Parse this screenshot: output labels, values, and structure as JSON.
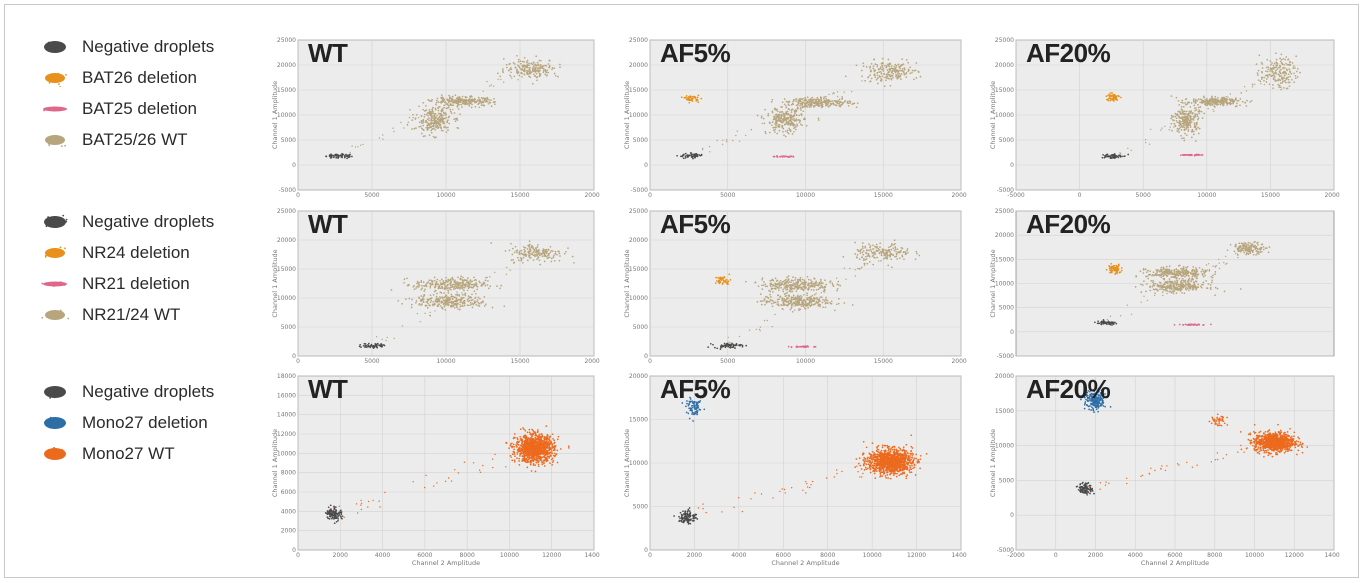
{
  "legends": [
    {
      "items": [
        {
          "label": "Negative droplets",
          "color": "#4a4a4a"
        },
        {
          "label": "BAT26 deletion",
          "color": "#e8901c"
        },
        {
          "label": "BAT25 deletion",
          "color": "#e0678c"
        },
        {
          "label": "BAT25/26 WT",
          "color": "#b7a57d"
        }
      ]
    },
    {
      "items": [
        {
          "label": "Negative droplets",
          "color": "#4a4a4a"
        },
        {
          "label": "NR24 deletion",
          "color": "#e8901c"
        },
        {
          "label": "NR21 deletion",
          "color": "#e0678c"
        },
        {
          "label": "NR21/24 WT",
          "color": "#b7a57d"
        }
      ]
    },
    {
      "items": [
        {
          "label": "Negative droplets",
          "color": "#4a4a4a"
        },
        {
          "label": "Mono27 deletion",
          "color": "#2d6ea6"
        },
        {
          "label": "Mono27 WT",
          "color": "#ec6a1e"
        }
      ]
    }
  ],
  "chart_data": [
    {
      "type": "scatter",
      "title": "WT",
      "xlabel": "",
      "ylabel": "Channel 1 Amplitude",
      "xlim": [
        0,
        20000
      ],
      "ylim": [
        -5000,
        25000
      ],
      "xticks": [
        "0",
        "5000",
        "10000",
        "15000",
        "20000"
      ],
      "yticks": [
        "-5000",
        "0",
        "5000",
        "10000",
        "15000",
        "20000",
        "25000"
      ],
      "clusters": [
        {
          "name": "Negative droplets",
          "x": 2700,
          "y": 1800,
          "sx": 400,
          "sy": 250,
          "count": 60
        },
        {
          "name": "BAT25/26 WT",
          "x": 9200,
          "y": 8900,
          "sx": 600,
          "sy": 1300,
          "count": 260
        },
        {
          "name": "BAT25/26 WT",
          "x": 11200,
          "y": 12700,
          "sx": 1000,
          "sy": 450,
          "count": 260
        },
        {
          "name": "BAT25/26 WT",
          "x": 15800,
          "y": 19300,
          "sx": 900,
          "sy": 900,
          "count": 200
        }
      ]
    },
    {
      "type": "scatter",
      "title": "AF5%",
      "xlabel": "",
      "ylabel": "Channel 1 Amplitude",
      "xlim": [
        0,
        20000
      ],
      "ylim": [
        -5000,
        25000
      ],
      "xticks": [
        "0",
        "5000",
        "10000",
        "15000",
        "20000"
      ],
      "yticks": [
        "-5000",
        "0",
        "5000",
        "10000",
        "15000",
        "20000",
        "25000"
      ],
      "clusters": [
        {
          "name": "Negative droplets",
          "x": 2700,
          "y": 1800,
          "sx": 400,
          "sy": 250,
          "count": 60
        },
        {
          "name": "BAT26 deletion",
          "x": 2700,
          "y": 13300,
          "sx": 220,
          "sy": 300,
          "count": 45
        },
        {
          "name": "BAT25 deletion",
          "x": 8600,
          "y": 1700,
          "sx": 400,
          "sy": 60,
          "count": 30
        },
        {
          "name": "BAT25/26 WT",
          "x": 8700,
          "y": 8900,
          "sx": 600,
          "sy": 1300,
          "count": 260
        },
        {
          "name": "BAT25/26 WT",
          "x": 10900,
          "y": 12500,
          "sx": 1000,
          "sy": 450,
          "count": 260
        },
        {
          "name": "BAT25/26 WT",
          "x": 15400,
          "y": 18700,
          "sx": 900,
          "sy": 1000,
          "count": 200
        }
      ]
    },
    {
      "type": "scatter",
      "title": "AF20%",
      "xlabel": "",
      "ylabel": "Channel 1 Amplitude",
      "xlim": [
        -5000,
        20000
      ],
      "ylim": [
        -5000,
        25000
      ],
      "xticks": [
        "-5000",
        "0",
        "5000",
        "10000",
        "15000",
        "20000"
      ],
      "yticks": [
        "-5000",
        "0",
        "5000",
        "10000",
        "15000",
        "20000",
        "25000"
      ],
      "clusters": [
        {
          "name": "Negative droplets",
          "x": 2500,
          "y": 1800,
          "sx": 400,
          "sy": 250,
          "count": 60
        },
        {
          "name": "BAT26 deletion",
          "x": 2600,
          "y": 13500,
          "sx": 250,
          "sy": 400,
          "count": 70
        },
        {
          "name": "BAT25 deletion",
          "x": 8800,
          "y": 2000,
          "sx": 400,
          "sy": 60,
          "count": 40
        },
        {
          "name": "BAT25/26 WT",
          "x": 8400,
          "y": 9000,
          "sx": 500,
          "sy": 1500,
          "count": 240
        },
        {
          "name": "BAT25/26 WT",
          "x": 10800,
          "y": 12700,
          "sx": 1000,
          "sy": 400,
          "count": 240
        },
        {
          "name": "BAT25/26 WT",
          "x": 15600,
          "y": 18500,
          "sx": 700,
          "sy": 1500,
          "count": 180
        }
      ]
    },
    {
      "type": "scatter",
      "title": "WT",
      "xlabel": "",
      "ylabel": "Channel 1 Amplitude",
      "xlim": [
        0,
        20000
      ],
      "ylim": [
        0,
        25000
      ],
      "xticks": [
        "0",
        "5000",
        "10000",
        "15000",
        "20000"
      ],
      "yticks": [
        "0",
        "5000",
        "10000",
        "15000",
        "20000",
        "25000"
      ],
      "clusters": [
        {
          "name": "Negative droplets",
          "x": 5100,
          "y": 1800,
          "sx": 400,
          "sy": 200,
          "count": 60
        },
        {
          "name": "NR21/24 WT",
          "x": 10300,
          "y": 9400,
          "sx": 1200,
          "sy": 600,
          "count": 280
        },
        {
          "name": "NR21/24 WT",
          "x": 10300,
          "y": 12300,
          "sx": 1200,
          "sy": 600,
          "count": 280
        },
        {
          "name": "NR21/24 WT",
          "x": 16100,
          "y": 17800,
          "sx": 900,
          "sy": 800,
          "count": 180
        }
      ]
    },
    {
      "type": "scatter",
      "title": "AF5%",
      "xlabel": "",
      "ylabel": "Channel 1 Amplitude",
      "xlim": [
        0,
        20000
      ],
      "ylim": [
        0,
        25000
      ],
      "xticks": [
        "0",
        "5000",
        "10000",
        "15000",
        "20000"
      ],
      "yticks": [
        "0",
        "5000",
        "10000",
        "15000",
        "20000",
        "25000"
      ],
      "clusters": [
        {
          "name": "Negative droplets",
          "x": 5000,
          "y": 1800,
          "sx": 450,
          "sy": 200,
          "count": 60
        },
        {
          "name": "NR24 deletion",
          "x": 4700,
          "y": 13000,
          "sx": 250,
          "sy": 400,
          "count": 45
        },
        {
          "name": "NR21 deletion",
          "x": 9900,
          "y": 1600,
          "sx": 400,
          "sy": 60,
          "count": 30
        },
        {
          "name": "NR21/24 WT",
          "x": 9400,
          "y": 9400,
          "sx": 1100,
          "sy": 600,
          "count": 280
        },
        {
          "name": "NR21/24 WT",
          "x": 9400,
          "y": 12300,
          "sx": 1100,
          "sy": 600,
          "count": 280
        },
        {
          "name": "NR21/24 WT",
          "x": 15000,
          "y": 17800,
          "sx": 900,
          "sy": 800,
          "count": 180
        }
      ]
    },
    {
      "type": "scatter",
      "title": "AF20%",
      "xlabel": "",
      "ylabel": "Channel 1 Amplitude",
      "xlim": [
        -5000,
        25000
      ],
      "ylim": [
        -5000,
        25000
      ],
      "xticks": [],
      "yticks": [
        "-5000",
        "0",
        "5000",
        "10000",
        "15000",
        "20000",
        "25000"
      ],
      "clusters": [
        {
          "name": "Negative droplets",
          "x": 3500,
          "y": 1800,
          "sx": 600,
          "sy": 200,
          "count": 60
        },
        {
          "name": "NR24 deletion",
          "x": 4300,
          "y": 13000,
          "sx": 300,
          "sy": 500,
          "count": 70
        },
        {
          "name": "NR21 deletion",
          "x": 11600,
          "y": 1500,
          "sx": 600,
          "sy": 60,
          "count": 40
        },
        {
          "name": "NR21/24 WT",
          "x": 10200,
          "y": 9400,
          "sx": 1400,
          "sy": 600,
          "count": 280
        },
        {
          "name": "NR21/24 WT",
          "x": 10200,
          "y": 12100,
          "sx": 1400,
          "sy": 600,
          "count": 280
        },
        {
          "name": "NR21/24 WT",
          "x": 17000,
          "y": 17300,
          "sx": 800,
          "sy": 600,
          "count": 150
        }
      ]
    },
    {
      "type": "scatter",
      "title": "WT",
      "xlabel": "Channel 2 Amplitude",
      "ylabel": "Channel 1 Amplitude",
      "xlim": [
        0,
        14000
      ],
      "ylim": [
        0,
        18000
      ],
      "xticks": [
        "0",
        "2000",
        "4000",
        "6000",
        "8000",
        "10000",
        "12000",
        "14000"
      ],
      "yticks": [
        "0",
        "2000",
        "4000",
        "6000",
        "8000",
        "10000",
        "12000",
        "14000",
        "16000",
        "18000"
      ],
      "clusters": [
        {
          "name": "Negative droplets",
          "x": 1700,
          "y": 3800,
          "sx": 180,
          "sy": 350,
          "count": 110
        },
        {
          "name": "Mono27 WT",
          "x": 11200,
          "y": 10500,
          "sx": 450,
          "sy": 700,
          "count": 1100
        }
      ]
    },
    {
      "type": "scatter",
      "title": "AF5%",
      "xlabel": "Channel 2 Amplitude",
      "ylabel": "Channel 1 Amplitude",
      "xlim": [
        0,
        14000
      ],
      "ylim": [
        0,
        20000
      ],
      "xticks": [
        "0",
        "2000",
        "4000",
        "6000",
        "8000",
        "10000",
        "12000",
        "14000"
      ],
      "yticks": [
        "0",
        "5000",
        "10000",
        "15000",
        "20000"
      ],
      "clusters": [
        {
          "name": "Negative droplets",
          "x": 1700,
          "y": 3800,
          "sx": 200,
          "sy": 400,
          "count": 110
        },
        {
          "name": "Mono27 deletion",
          "x": 2000,
          "y": 16300,
          "sx": 180,
          "sy": 500,
          "count": 80
        },
        {
          "name": "Mono27 WT",
          "x": 10800,
          "y": 10200,
          "sx": 500,
          "sy": 700,
          "count": 1100
        }
      ]
    },
    {
      "type": "scatter",
      "title": "AF20%",
      "xlabel": "Channel 2 Amplitude",
      "ylabel": "Channel 1 Amplitude",
      "xlim": [
        -2000,
        14000
      ],
      "ylim": [
        -5000,
        20000
      ],
      "xticks": [
        "-2000",
        "0",
        "2000",
        "4000",
        "6000",
        "8000",
        "10000",
        "12000",
        "14000"
      ],
      "yticks": [
        "-5000",
        "0",
        "5000",
        "10000",
        "15000",
        "20000"
      ],
      "clusters": [
        {
          "name": "Negative droplets",
          "x": 1500,
          "y": 3800,
          "sx": 180,
          "sy": 400,
          "count": 100
        },
        {
          "name": "Mono27 deletion",
          "x": 2000,
          "y": 16500,
          "sx": 250,
          "sy": 700,
          "count": 200
        },
        {
          "name": "Mono27 WT",
          "x": 8200,
          "y": 13500,
          "sx": 200,
          "sy": 500,
          "count": 40
        },
        {
          "name": "Mono27 WT",
          "x": 11000,
          "y": 10500,
          "sx": 500,
          "sy": 700,
          "count": 900
        }
      ]
    }
  ],
  "colors": {
    "Negative droplets": "#4a4a4a",
    "BAT26 deletion": "#e8901c",
    "BAT25 deletion": "#e0678c",
    "BAT25/26 WT": "#b7a57d",
    "NR24 deletion": "#e8901c",
    "NR21 deletion": "#e0678c",
    "NR21/24 WT": "#b7a57d",
    "Mono27 deletion": "#2d6ea6",
    "Mono27 WT": "#ec6a1e",
    "plot_background": "#ececec",
    "gridline": "#d2d2d2"
  }
}
